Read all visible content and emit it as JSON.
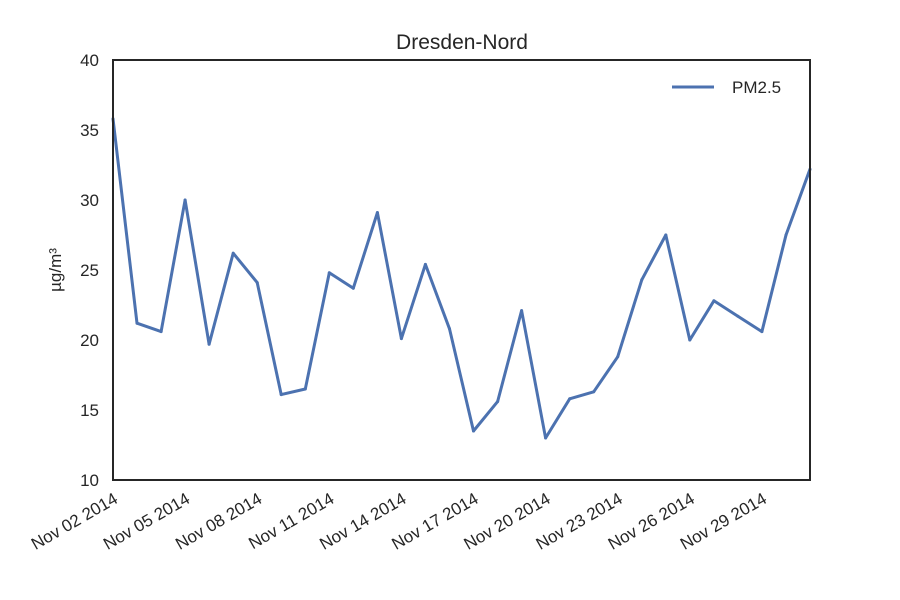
{
  "chart_data": {
    "type": "line",
    "title": "Dresden-Nord",
    "xlabel": "",
    "ylabel": "µg/m³",
    "x_range": [
      "2014-11-02",
      "2014-12-01"
    ],
    "ylim": [
      10,
      40
    ],
    "yticks": [
      10,
      15,
      20,
      25,
      30,
      35,
      40
    ],
    "xticks": [
      {
        "date": "2014-11-02",
        "label": "Nov 02 2014"
      },
      {
        "date": "2014-11-05",
        "label": "Nov 05 2014"
      },
      {
        "date": "2014-11-08",
        "label": "Nov 08 2014"
      },
      {
        "date": "2014-11-11",
        "label": "Nov 11 2014"
      },
      {
        "date": "2014-11-14",
        "label": "Nov 14 2014"
      },
      {
        "date": "2014-11-17",
        "label": "Nov 17 2014"
      },
      {
        "date": "2014-11-20",
        "label": "Nov 20 2014"
      },
      {
        "date": "2014-11-23",
        "label": "Nov 23 2014"
      },
      {
        "date": "2014-11-26",
        "label": "Nov 26 2014"
      },
      {
        "date": "2014-11-29",
        "label": "Nov 29 2014"
      }
    ],
    "grid": false,
    "legend_position": "top-right",
    "series": [
      {
        "name": "PM2.5",
        "color": "#4c72b0",
        "x": [
          "2014-11-02",
          "2014-11-03",
          "2014-11-04",
          "2014-11-05",
          "2014-11-06",
          "2014-11-07",
          "2014-11-08",
          "2014-11-09",
          "2014-11-10",
          "2014-11-11",
          "2014-11-12",
          "2014-11-13",
          "2014-11-14",
          "2014-11-15",
          "2014-11-16",
          "2014-11-17",
          "2014-11-18",
          "2014-11-19",
          "2014-11-20",
          "2014-11-21",
          "2014-11-22",
          "2014-11-23",
          "2014-11-24",
          "2014-11-25",
          "2014-11-26",
          "2014-11-27",
          "2014-11-28",
          "2014-11-29",
          "2014-11-30",
          "2014-12-01"
        ],
        "values": [
          35.8,
          21.2,
          20.6,
          30.0,
          19.7,
          26.2,
          24.1,
          16.1,
          16.5,
          24.8,
          23.7,
          29.1,
          20.1,
          25.4,
          20.8,
          13.5,
          15.6,
          22.1,
          13.0,
          15.8,
          16.3,
          18.8,
          24.3,
          27.5,
          20.0,
          22.8,
          21.7,
          20.6,
          27.5,
          32.2
        ]
      }
    ]
  }
}
